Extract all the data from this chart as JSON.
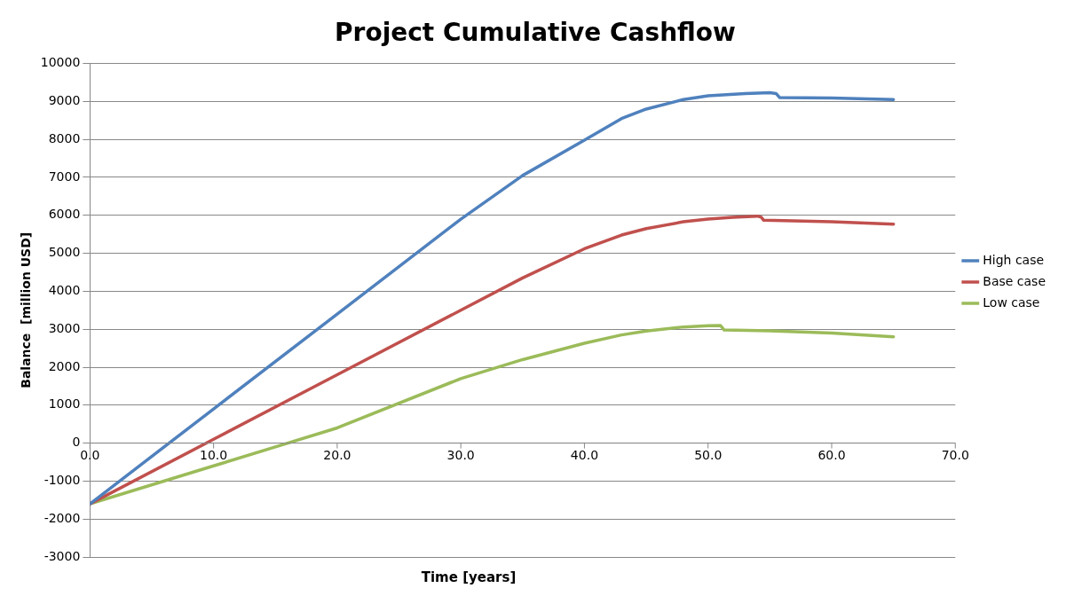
{
  "chart_data": {
    "type": "line",
    "title": "Project Cumulative Cashflow",
    "xlabel": "Time [years]",
    "ylabel": "Balance  [million USD]",
    "xlim": [
      0,
      70
    ],
    "xticks": [
      {
        "value": 0,
        "label": "0.0"
      },
      {
        "value": 10,
        "label": "10.0"
      },
      {
        "value": 20,
        "label": "20.0"
      },
      {
        "value": 30,
        "label": "30.0"
      },
      {
        "value": 40,
        "label": "40.0"
      },
      {
        "value": 50,
        "label": "50.0"
      },
      {
        "value": 60,
        "label": "60.0"
      },
      {
        "value": 70,
        "label": "70.0"
      }
    ],
    "ylim": [
      -3000,
      10000
    ],
    "yticks": [
      -3000,
      -2000,
      -1000,
      0,
      1000,
      2000,
      3000,
      4000,
      5000,
      6000,
      7000,
      8000,
      9000,
      10000
    ],
    "grid": "y",
    "legend": "right",
    "marker": "none",
    "line_style": "solid",
    "series": [
      {
        "name": "High case",
        "color": "#4f81bd",
        "x": [
          0,
          10,
          20,
          30,
          35,
          40,
          43,
          45,
          48,
          50,
          53,
          55,
          55.5,
          55.8,
          60,
          65
        ],
        "values": [
          -1600,
          900,
          3400,
          5900,
          7050,
          7980,
          8550,
          8800,
          9050,
          9150,
          9210,
          9230,
          9210,
          9100,
          9090,
          9050
        ]
      },
      {
        "name": "Base case",
        "color": "#c0504d",
        "x": [
          0,
          10,
          20,
          30,
          35,
          40,
          43,
          45,
          48,
          50,
          52,
          54,
          54.3,
          54.5,
          60,
          65
        ],
        "values": [
          -1600,
          100,
          1800,
          3500,
          4350,
          5120,
          5480,
          5650,
          5830,
          5900,
          5950,
          5980,
          5950,
          5870,
          5830,
          5770
        ]
      },
      {
        "name": "Low case",
        "color": "#9bbb59",
        "x": [
          0,
          10,
          15,
          20,
          30,
          35,
          40,
          43,
          45,
          48,
          50,
          51,
          51.3,
          55,
          60,
          65
        ],
        "values": [
          -1600,
          -600,
          -100,
          400,
          1700,
          2200,
          2630,
          2850,
          2950,
          3060,
          3090,
          3100,
          2980,
          2960,
          2900,
          2800
        ]
      }
    ]
  }
}
